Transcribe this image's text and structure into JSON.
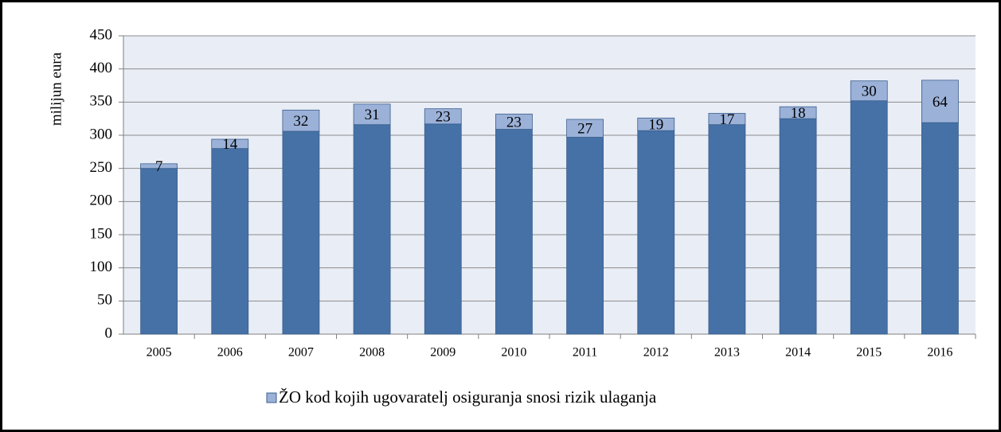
{
  "chart_data": {
    "type": "stacked_bar",
    "y_label": "milijun eura",
    "categories": [
      "2005",
      "2006",
      "2007",
      "2008",
      "2009",
      "2010",
      "2011",
      "2012",
      "2013",
      "2014",
      "2015",
      "2016"
    ],
    "series": [
      {
        "color": "#4571a6",
        "values": [
          250,
          280,
          306,
          316,
          317,
          309,
          297,
          307,
          316,
          325,
          352,
          319
        ]
      },
      {
        "name": "ŽO kod kojih ugovaratelj osiguranja snosi rizik ulaganja",
        "color": "#9bb1d8",
        "values": [
          7,
          14,
          32,
          31,
          23,
          23,
          27,
          19,
          17,
          18,
          30,
          64
        ]
      }
    ],
    "ylim": [
      0,
      450
    ],
    "yticks": [
      0,
      50,
      100,
      150,
      200,
      250,
      300,
      350,
      400,
      450
    ],
    "grid": true,
    "legend": "bottom"
  }
}
